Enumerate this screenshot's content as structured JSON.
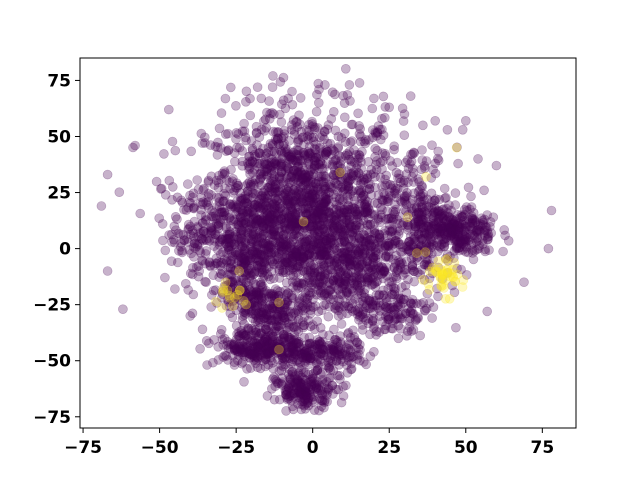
{
  "chart_data": {
    "type": "scatter",
    "title": "",
    "xlabel": "",
    "ylabel": "",
    "xlim": [
      -76,
      86
    ],
    "ylim": [
      -80,
      85
    ],
    "xticks": [
      -75,
      -50,
      -25,
      0,
      25,
      50,
      75
    ],
    "yticks": [
      -75,
      -50,
      -25,
      0,
      25,
      50,
      75
    ],
    "xtick_labels": [
      "−75",
      "−50",
      "−25",
      "0",
      "25",
      "50",
      "75"
    ],
    "ytick_labels": [
      "−75",
      "−50",
      "−25",
      "0",
      "25",
      "50",
      "75"
    ],
    "grid": false,
    "legend": "none",
    "point_alpha": 0.3,
    "colors": {
      "class_0": "#440154",
      "class_1": "#fde725"
    },
    "clusters": [
      {
        "label": 0,
        "cx": -3,
        "cy": 22,
        "sx": 16,
        "sy": 20,
        "n": 1400
      },
      {
        "label": 0,
        "cx": 10,
        "cy": -5,
        "sx": 13,
        "sy": 14,
        "n": 700
      },
      {
        "label": 0,
        "cx": -24,
        "cy": 5,
        "sx": 11,
        "sy": 12,
        "n": 500
      },
      {
        "label": 0,
        "cx": 46,
        "cy": 7,
        "sx": 7,
        "sy": 6,
        "n": 320
      },
      {
        "label": 0,
        "cx": 33,
        "cy": 20,
        "sx": 6,
        "sy": 12,
        "n": 150
      },
      {
        "label": 0,
        "cx": -20,
        "cy": -44,
        "sx": 6,
        "sy": 4,
        "n": 170
      },
      {
        "label": 0,
        "cx": -9,
        "cy": -46,
        "sx": 6,
        "sy": 5,
        "n": 170
      },
      {
        "label": 0,
        "cx": 6,
        "cy": -47,
        "sx": 5,
        "sy": 4,
        "n": 130
      },
      {
        "label": 0,
        "cx": -2,
        "cy": -63,
        "sx": 5,
        "sy": 4,
        "n": 190
      },
      {
        "label": 0,
        "cx": -12,
        "cy": -28,
        "sx": 6,
        "sy": 5,
        "n": 150
      },
      {
        "label": 0,
        "cx": -22,
        "cy": -20,
        "sx": 4,
        "sy": 5,
        "n": 90
      },
      {
        "label": 0,
        "cx": 24,
        "cy": -28,
        "sx": 7,
        "sy": 5,
        "n": 120
      },
      {
        "label": 1,
        "cx": 42,
        "cy": -13,
        "sx": 3.5,
        "sy": 4,
        "n": 45
      },
      {
        "label": 1,
        "cx": -27,
        "cy": -22,
        "sx": 2.5,
        "sy": 2.5,
        "n": 16
      }
    ],
    "points": [
      {
        "x": -69,
        "y": 19,
        "label": 0
      },
      {
        "x": -67,
        "y": 33,
        "label": 0
      },
      {
        "x": -67,
        "y": -10,
        "label": 0
      },
      {
        "x": -62,
        "y": -27,
        "label": 0
      },
      {
        "x": -58,
        "y": 46,
        "label": 0
      },
      {
        "x": -47,
        "y": 62,
        "label": 0
      },
      {
        "x": -18,
        "y": 72,
        "label": 0
      },
      {
        "x": -13,
        "y": 77,
        "label": 0
      },
      {
        "x": -8,
        "y": 67,
        "label": 0
      },
      {
        "x": 4,
        "y": 73,
        "label": 0
      },
      {
        "x": 2,
        "y": 65,
        "label": 0
      },
      {
        "x": 12,
        "y": 73,
        "label": 0
      },
      {
        "x": 20,
        "y": 67,
        "label": 0
      },
      {
        "x": 25,
        "y": 63,
        "label": 0
      },
      {
        "x": 30,
        "y": 60,
        "label": 0
      },
      {
        "x": 32,
        "y": 68,
        "label": 0
      },
      {
        "x": 36,
        "y": 55,
        "label": 0
      },
      {
        "x": 40,
        "y": 57,
        "label": 0
      },
      {
        "x": 44,
        "y": 53,
        "label": 0
      },
      {
        "x": 50,
        "y": 57,
        "label": 0
      },
      {
        "x": 49,
        "y": 53,
        "label": 0
      },
      {
        "x": 54,
        "y": 40,
        "label": 0
      },
      {
        "x": 60,
        "y": 37,
        "label": 0
      },
      {
        "x": 56,
        "y": 26,
        "label": 0
      },
      {
        "x": 57,
        "y": 15,
        "label": 0
      },
      {
        "x": 59,
        "y": 14,
        "label": 0
      },
      {
        "x": 78,
        "y": 17,
        "label": 0
      },
      {
        "x": 77,
        "y": 0,
        "label": 0
      },
      {
        "x": 69,
        "y": -15,
        "label": 0
      },
      {
        "x": 57,
        "y": -28,
        "label": 0
      },
      {
        "x": 39,
        "y": -31,
        "label": 0
      },
      {
        "x": -45,
        "y": -18,
        "label": 0
      },
      {
        "x": -40,
        "y": -30,
        "label": 0
      },
      {
        "x": -36,
        "y": -36,
        "label": 0
      },
      {
        "x": -30,
        "y": -38,
        "label": 0
      },
      {
        "x": 28,
        "y": -40,
        "label": 0
      },
      {
        "x": 20,
        "y": -46,
        "label": 0
      },
      {
        "x": -49,
        "y": 11,
        "label": 0
      },
      {
        "x": -48,
        "y": 24,
        "label": 0
      },
      {
        "x": 40,
        "y": 38,
        "label": 0
      },
      {
        "x": 47,
        "y": 45,
        "label": 1
      },
      {
        "x": 9,
        "y": 34,
        "label": 1
      },
      {
        "x": -3,
        "y": 12,
        "label": 1
      },
      {
        "x": 31,
        "y": 14,
        "label": 1
      },
      {
        "x": -11,
        "y": -24,
        "label": 1
      },
      {
        "x": -11,
        "y": -45,
        "label": 1
      },
      {
        "x": 37,
        "y": 32,
        "label": 1
      },
      {
        "x": -24,
        "y": -10,
        "label": 1
      },
      {
        "x": 34,
        "y": -2,
        "label": 1
      }
    ]
  }
}
